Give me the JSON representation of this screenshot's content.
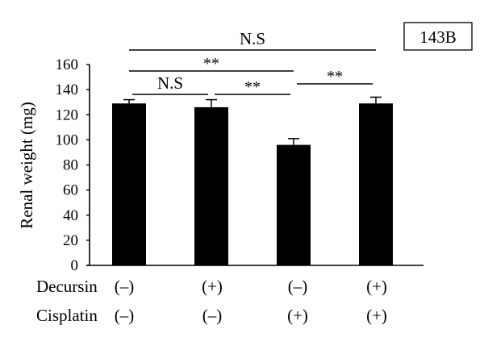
{
  "chart_data": {
    "type": "bar",
    "ylabel": "Renal weight (mg)",
    "ylim": [
      0,
      160
    ],
    "yticks": [
      0,
      20,
      40,
      60,
      80,
      100,
      120,
      140,
      160
    ],
    "values": [
      129,
      126,
      96,
      129
    ],
    "errors": [
      3,
      6,
      5,
      5
    ],
    "bar_color": "#000000",
    "panel_label": "143B",
    "treatment_rows": [
      {
        "label": "Decursin",
        "values": [
          "(–)",
          "(+)",
          "(–)",
          "(+)"
        ]
      },
      {
        "label": "Cisplatin",
        "values": [
          "(–)",
          "(–)",
          "(+)",
          "(+)"
        ]
      }
    ],
    "annotations": [
      {
        "from": 0,
        "to": 3,
        "text": "N.S"
      },
      {
        "from": 0,
        "to": 2,
        "text": "**"
      },
      {
        "from": 0,
        "to": 1,
        "text": "N.S"
      },
      {
        "from": 1,
        "to": 2,
        "text": "**"
      },
      {
        "from": 2,
        "to": 3,
        "text": "**"
      }
    ],
    "grid": false,
    "legend": "none"
  }
}
